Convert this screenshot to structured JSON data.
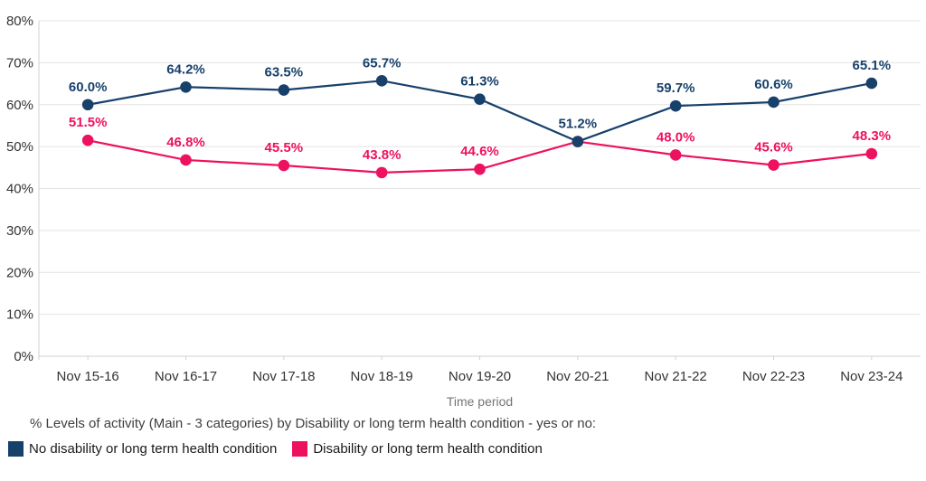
{
  "chart_data": {
    "type": "line",
    "categories": [
      "Nov 15-16",
      "Nov 16-17",
      "Nov 17-18",
      "Nov 18-19",
      "Nov 19-20",
      "Nov 20-21",
      "Nov 21-22",
      "Nov 22-23",
      "Nov 23-24"
    ],
    "series": [
      {
        "name": "No disability or long term health condition",
        "color": "#17406b",
        "values": [
          60.0,
          64.2,
          63.5,
          65.7,
          61.3,
          51.2,
          59.7,
          60.6,
          65.1
        ],
        "labels": [
          "60.0%",
          "64.2%",
          "63.5%",
          "65.7%",
          "61.3%",
          "51.2%",
          "59.7%",
          "60.6%",
          "65.1%"
        ]
      },
      {
        "name": "Disability or long term health condition",
        "color": "#ed115f",
        "values": [
          51.5,
          46.8,
          45.5,
          43.8,
          44.6,
          51.2,
          48.0,
          45.6,
          48.3
        ],
        "labels": [
          "51.5%",
          "46.8%",
          "45.5%",
          "43.8%",
          "44.6%",
          "",
          "48.0%",
          "45.6%",
          "48.3%"
        ]
      }
    ],
    "xlabel": "Time period",
    "ylabel": "",
    "ylim": [
      0,
      80
    ],
    "ytick_step": 10,
    "ytick_labels": [
      "0%",
      "10%",
      "20%",
      "30%",
      "40%",
      "50%",
      "60%",
      "70%",
      "80%"
    ],
    "grid": "horizontal",
    "legend_position": "bottom-left",
    "legend_title": "% Levels of activity (Main - 3 categories) by Disability or long term health condition - yes or no:"
  },
  "colors": {
    "background": "#ffffff",
    "gridline": "#e4e4e4",
    "axis_line": "#d2d2d2",
    "tick_label": "#333333",
    "axis_title": "#757575",
    "legend_title_text": "#3f3f3f",
    "legend_label_text": "#1a1a1a"
  }
}
